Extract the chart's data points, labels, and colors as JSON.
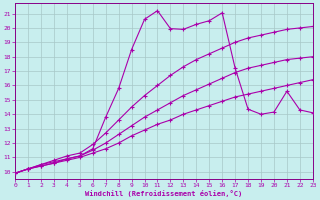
{
  "xlabel": "Windchill (Refroidissement éolien,°C)",
  "bg_color": "#c8eeee",
  "grid_color": "#a8c8c8",
  "line_color": "#aa00aa",
  "spine_color": "#880088",
  "xlim": [
    0,
    23
  ],
  "ylim": [
    9.5,
    21.7
  ],
  "xticks": [
    0,
    1,
    2,
    3,
    4,
    5,
    6,
    7,
    8,
    9,
    10,
    11,
    12,
    13,
    14,
    15,
    16,
    17,
    18,
    19,
    20,
    21,
    22,
    23
  ],
  "yticks": [
    10,
    11,
    12,
    13,
    14,
    15,
    16,
    17,
    18,
    19,
    20,
    21
  ],
  "c1_x": [
    0,
    1,
    2,
    3,
    4,
    5,
    6,
    7,
    8,
    9,
    10,
    11,
    12,
    13,
    14,
    15,
    16,
    17,
    18,
    19,
    20,
    21,
    22,
    23
  ],
  "c1_y": [
    9.9,
    10.2,
    10.4,
    10.6,
    10.8,
    11.0,
    11.3,
    11.6,
    12.0,
    12.5,
    12.9,
    13.3,
    13.6,
    14.0,
    14.3,
    14.6,
    14.9,
    15.2,
    15.4,
    15.6,
    15.8,
    16.0,
    16.2,
    16.4
  ],
  "c2_x": [
    0,
    1,
    2,
    3,
    4,
    5,
    6,
    7,
    8,
    9,
    10,
    11,
    12,
    13,
    14,
    15,
    16,
    17,
    18,
    19,
    20,
    21,
    22,
    23
  ],
  "c2_y": [
    9.9,
    10.2,
    10.4,
    10.6,
    10.9,
    11.1,
    11.5,
    12.0,
    12.6,
    13.2,
    13.8,
    14.3,
    14.8,
    15.3,
    15.7,
    16.1,
    16.5,
    16.9,
    17.2,
    17.4,
    17.6,
    17.8,
    17.9,
    18.0
  ],
  "c3_x": [
    0,
    1,
    2,
    3,
    4,
    5,
    6,
    7,
    8,
    9,
    10,
    11,
    12,
    13,
    14,
    15,
    16,
    17,
    18,
    19,
    20,
    21,
    22,
    23
  ],
  "c3_y": [
    9.9,
    10.2,
    10.5,
    10.8,
    11.1,
    11.3,
    11.9,
    12.7,
    13.6,
    14.5,
    15.3,
    16.0,
    16.7,
    17.3,
    17.8,
    18.2,
    18.6,
    19.0,
    19.3,
    19.5,
    19.7,
    19.9,
    20.0,
    20.1
  ],
  "c4_x": [
    0,
    1,
    2,
    3,
    4,
    5,
    6,
    7,
    8,
    9,
    10,
    11,
    12,
    13,
    14,
    15,
    16,
    17,
    18,
    19,
    20,
    21,
    22,
    23
  ],
  "c4_y": [
    9.9,
    10.2,
    10.5,
    10.7,
    10.9,
    11.1,
    11.6,
    13.8,
    15.8,
    18.5,
    20.6,
    21.2,
    19.95,
    19.9,
    20.25,
    20.5,
    21.05,
    17.2,
    14.35,
    14.0,
    14.15,
    15.6,
    14.3,
    14.1
  ]
}
